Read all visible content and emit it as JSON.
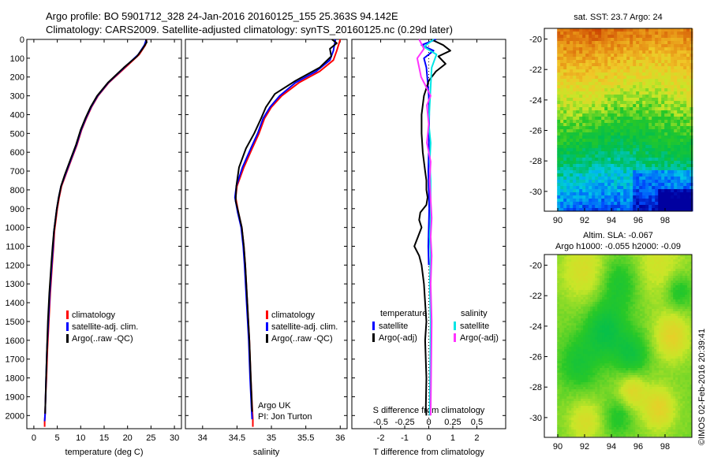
{
  "header": {
    "line1": "Argo profile: BO 5901712_328 24-Jan-2016 20160125_155 25.363S 94.142E",
    "line2": "Climatology: CARS2009. Satellite-adjusted climatology: synTS_20160125.nc (0.29d later)"
  },
  "side_text": "©IMOS 02-Feb-2016 20:39:41",
  "colors": {
    "climatology": "#ff0000",
    "satellite": "#0000ff",
    "argo": "#000000",
    "sal_sat": "#00e5e5",
    "sal_argo": "#ff33ff"
  },
  "chart_data": [
    {
      "type": "line",
      "name": "temperature-profile",
      "xlabel": "temperature (deg C)",
      "xlim": [
        -1.5,
        31.5
      ],
      "ylim": [
        0,
        2070
      ],
      "y_reversed": true,
      "xticks": [
        0,
        5,
        10,
        15,
        20,
        25,
        30
      ],
      "yticks": [
        0,
        100,
        200,
        300,
        400,
        500,
        600,
        700,
        800,
        900,
        1000,
        1100,
        1200,
        1300,
        1400,
        1500,
        1600,
        1700,
        1800,
        1900,
        2000
      ],
      "legend": [
        "climatology",
        "satellite-adj. clim.",
        "Argo(..raw -QC)"
      ],
      "series": [
        {
          "key": "climatology",
          "x": [
            24.1,
            23.8,
            22.5,
            19.5,
            16,
            13.7,
            12.3,
            11.2,
            10.2,
            9.2,
            8,
            6.8,
            5.9,
            5.4,
            5.0,
            4.7,
            4.4,
            4.2,
            3.9,
            3.5,
            3.2,
            2.9,
            2.7,
            2.5,
            2.4,
            2.3,
            2.3
          ],
          "y": [
            0,
            30,
            80,
            150,
            230,
            300,
            360,
            420,
            480,
            560,
            640,
            720,
            780,
            840,
            900,
            960,
            1020,
            1100,
            1200,
            1350,
            1500,
            1650,
            1800,
            1900,
            1990,
            2030,
            2060
          ]
        },
        {
          "key": "satellite",
          "x": [
            24.0,
            23.6,
            22.3,
            19.3,
            15.9,
            13.6,
            12.2,
            11.1,
            10.1,
            9.1,
            7.9,
            6.7,
            5.8,
            5.3,
            4.9,
            4.6,
            4.3,
            4.1,
            3.8,
            3.4,
            3.1,
            2.8,
            2.6,
            2.5,
            2.4,
            2.3
          ],
          "y": [
            0,
            30,
            80,
            150,
            230,
            300,
            360,
            420,
            480,
            560,
            640,
            720,
            780,
            840,
            900,
            960,
            1020,
            1100,
            1200,
            1350,
            1500,
            1650,
            1800,
            1900,
            1990,
            2030
          ]
        },
        {
          "key": "argo",
          "x": [
            23.9,
            24.1,
            23.2,
            22,
            19.2,
            15.8,
            13.5,
            12.1,
            11.0,
            10.0,
            9.0,
            7.8,
            6.6,
            5.8,
            5.3,
            4.9,
            4.6,
            4.3,
            4.0,
            3.7,
            3.3,
            3.0,
            2.8,
            2.6,
            2.5,
            2.4
          ],
          "y": [
            0,
            15,
            50,
            90,
            150,
            230,
            300,
            360,
            420,
            480,
            560,
            640,
            720,
            780,
            840,
            900,
            960,
            1020,
            1100,
            1200,
            1350,
            1500,
            1650,
            1800,
            1900,
            1990
          ]
        }
      ]
    },
    {
      "type": "line",
      "name": "salinity-profile",
      "xlabel": "salinity",
      "xlim": [
        33.75,
        36.1
      ],
      "ylim": [
        0,
        2070
      ],
      "y_reversed": true,
      "xticks": [
        34,
        34.5,
        35,
        35.5,
        36
      ],
      "xticklabels": [
        "34",
        "34.5",
        "35",
        "35.5",
        "36"
      ],
      "legend": [
        "climatology",
        "satellite-adj. clim.",
        "Argo(..raw -QC)"
      ],
      "annotation": [
        "Argo UK",
        "PI: Jon Turton"
      ],
      "series": [
        {
          "key": "climatology",
          "x": [
            36.0,
            35.95,
            35.9,
            35.7,
            35.4,
            35.15,
            35.0,
            34.9,
            34.82,
            34.72,
            34.6,
            34.5,
            34.48,
            34.52,
            34.57,
            34.6,
            34.62,
            34.65,
            34.68,
            34.7,
            34.72,
            34.73,
            34.73
          ],
          "y": [
            0,
            60,
            110,
            170,
            230,
            300,
            360,
            420,
            500,
            580,
            680,
            780,
            840,
            920,
            1000,
            1100,
            1200,
            1400,
            1600,
            1800,
            1950,
            2020,
            2060
          ]
        },
        {
          "key": "satellite",
          "x": [
            35.93,
            35.9,
            35.85,
            35.65,
            35.35,
            35.12,
            34.98,
            34.88,
            34.8,
            34.7,
            34.58,
            34.49,
            34.47,
            34.51,
            34.56,
            34.59,
            34.61,
            34.64,
            34.67,
            34.69,
            34.71,
            34.72
          ],
          "y": [
            0,
            60,
            110,
            170,
            230,
            300,
            360,
            420,
            500,
            580,
            680,
            780,
            840,
            920,
            1000,
            1100,
            1200,
            1400,
            1600,
            1800,
            1950,
            2020
          ]
        },
        {
          "key": "argo",
          "x": [
            35.88,
            35.95,
            35.85,
            35.87,
            35.7,
            35.35,
            35.05,
            34.92,
            34.85,
            34.75,
            34.63,
            34.53,
            34.49,
            34.48,
            34.52,
            34.57,
            34.6,
            34.62,
            34.65,
            34.68,
            34.7,
            34.72
          ],
          "y": [
            0,
            20,
            50,
            90,
            150,
            220,
            290,
            360,
            420,
            500,
            580,
            680,
            780,
            860,
            920,
            1000,
            1100,
            1200,
            1400,
            1600,
            1800,
            1980
          ]
        }
      ]
    },
    {
      "type": "line",
      "name": "difference-profile",
      "xlabel": "T difference from climatology",
      "xlabel2": "S difference from climatology",
      "xlim": [
        -3.2,
        3.2
      ],
      "ylim": [
        0,
        2070
      ],
      "y_reversed": true,
      "xticks": [
        -2,
        -1,
        0,
        1,
        2
      ],
      "xticklabels": [
        "-2",
        "-1",
        "0",
        "1",
        "2"
      ],
      "sticks": [
        -0.5,
        -0.25,
        0,
        0.25,
        0.5
      ],
      "sticklabels": [
        "-0.5",
        "-0.25",
        "0",
        "0.25",
        "0.5"
      ],
      "s_scale": 4,
      "legend_t_title": "temperature",
      "legend_s_title": "salinity",
      "legend_entries": [
        "satellite",
        "Argo(-adj)",
        "satellite",
        "Argo(-adj)"
      ],
      "series": [
        {
          "key": "t_sat",
          "x": [
            0.3,
            -0.3,
            0.2,
            -0.2,
            -0.1,
            -0.05,
            0.0,
            0.02,
            0.01,
            0.0,
            -0.02,
            0.0,
            0.02,
            0.0,
            -0.02,
            0.0
          ],
          "y": [
            0,
            30,
            60,
            100,
            150,
            220,
            300,
            400,
            500,
            600,
            700,
            800,
            900,
            1000,
            1100,
            1200
          ]
        },
        {
          "key": "t_argo",
          "x": [
            0.1,
            0.6,
            0.9,
            0.4,
            0.7,
            0.3,
            0.0,
            -0.2,
            -0.3,
            -0.3,
            -0.25,
            -0.15,
            -0.1,
            -0.1,
            -0.05,
            -0.1,
            -0.35,
            -0.4,
            -0.3,
            -0.45,
            -0.6,
            -0.4,
            -0.3,
            -0.2,
            -0.15,
            -0.1,
            -0.15,
            -0.1,
            -0.12,
            -0.1
          ],
          "y": [
            0,
            30,
            60,
            90,
            130,
            170,
            220,
            300,
            400,
            500,
            600,
            700,
            750,
            800,
            840,
            880,
            920,
            960,
            1000,
            1050,
            1100,
            1150,
            1200,
            1300,
            1400,
            1500,
            1600,
            1800,
            1950,
            2000
          ]
        },
        {
          "key": "s_sat",
          "x": [
            0.05,
            -0.05,
            0.08,
            0.03,
            0.02,
            0.01,
            0.0,
            0.02,
            0.01,
            0.02,
            0.02,
            0.02,
            0.01,
            0.02,
            0.01,
            0.02,
            0.01
          ],
          "y": [
            0,
            40,
            80,
            150,
            250,
            350,
            450,
            550,
            650,
            750,
            850,
            950,
            1050,
            1150,
            1300,
            1500,
            2000
          ]
        },
        {
          "key": "s_argo",
          "x": [
            -0.1,
            -0.05,
            -0.12,
            -0.08,
            0.02,
            -0.02,
            0.0,
            -0.02,
            0.02,
            0.01,
            0.02,
            0.03,
            0.02,
            0.03,
            0.02,
            0.03,
            0.02
          ],
          "y": [
            0,
            50,
            100,
            200,
            300,
            350,
            450,
            550,
            650,
            750,
            850,
            950,
            1050,
            1150,
            1300,
            1500,
            2000
          ]
        }
      ]
    },
    {
      "type": "heatmap",
      "name": "sst-map",
      "title": "sat. SST: 23.7 Argo: 24",
      "xlim": [
        89,
        100
      ],
      "ylim": [
        -31.3,
        -19.3
      ],
      "xticks": [
        90,
        92,
        94,
        96,
        98
      ],
      "yticks": [
        -20,
        -22,
        -24,
        -26,
        -28,
        -30
      ]
    },
    {
      "type": "heatmap",
      "name": "sla-map",
      "title_line1": "Altim. SLA: -0.067",
      "title_line2": "Argo h1000: -0.055 h2000: -0.09",
      "xlim": [
        89,
        100
      ],
      "ylim": [
        -31.3,
        -19.3
      ],
      "xticks": [
        90,
        92,
        94,
        96,
        98
      ],
      "yticks": [
        -20,
        -22,
        -24,
        -26,
        -28,
        -30
      ]
    }
  ]
}
